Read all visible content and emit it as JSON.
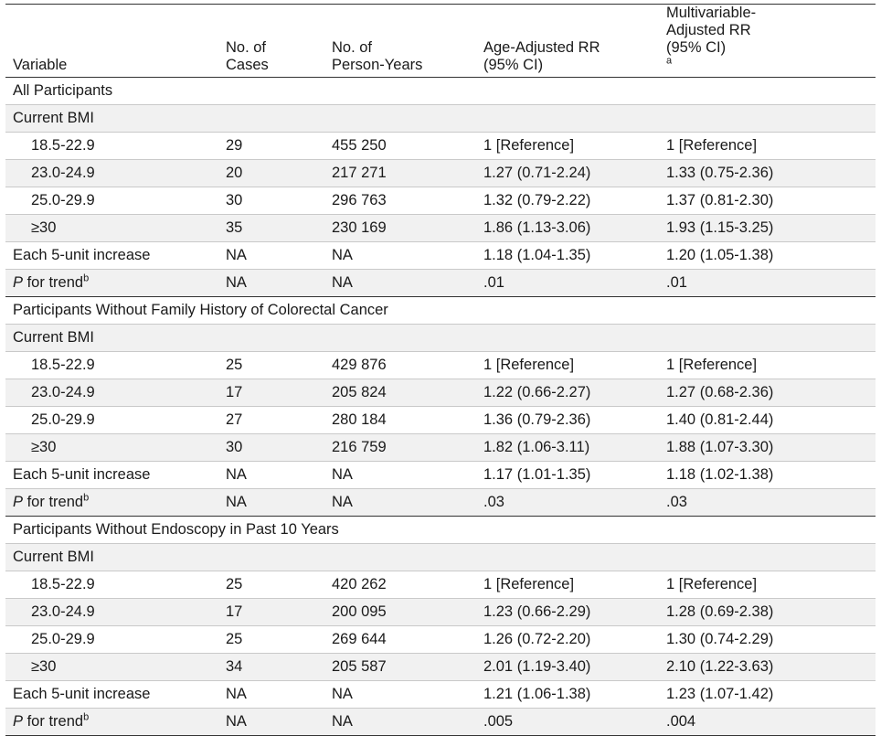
{
  "table": {
    "headers": {
      "variable": [
        "Variable"
      ],
      "cases": [
        "No. of",
        "Cases"
      ],
      "person_years": [
        "No. of",
        "Person-Years"
      ],
      "age_adjusted": [
        "Age-Adjusted RR",
        "(95% CI)"
      ],
      "multivariable": [
        "Multivariable-",
        "Adjusted RR",
        "(95% CI)"
      ],
      "multivariable_sup": "a"
    },
    "footnote_b": "b",
    "sections": [
      {
        "title": "All Participants",
        "subheading": "Current BMI",
        "rows": [
          {
            "label": "18.5-22.9",
            "cases": "29",
            "py": "455 250",
            "age": "1 [Reference]",
            "multi": "1 [Reference]"
          },
          {
            "label": "23.0-24.9",
            "cases": "20",
            "py": "217 271",
            "age": "1.27 (0.71-2.24)",
            "multi": "1.33 (0.75-2.36)"
          },
          {
            "label": "25.0-29.9",
            "cases": "30",
            "py": "296 763",
            "age": "1.32 (0.79-2.22)",
            "multi": "1.37 (0.81-2.30)"
          },
          {
            "label": "≥30",
            "cases": "35",
            "py": "230 169",
            "age": "1.86 (1.13-3.06)",
            "multi": "1.93 (1.15-3.25)"
          },
          {
            "label": "Each 5-unit increase",
            "cases": "NA",
            "py": "NA",
            "age": "1.18 (1.04-1.35)",
            "multi": "1.20 (1.05-1.38)"
          }
        ],
        "trend": {
          "p": "P",
          "rest": " for trend",
          "cases": "NA",
          "py": "NA",
          "age": ".01",
          "multi": ".01"
        }
      },
      {
        "title": "Participants Without Family History of Colorectal Cancer",
        "subheading": "Current BMI",
        "rows": [
          {
            "label": "18.5-22.9",
            "cases": "25",
            "py": "429 876",
            "age": "1 [Reference]",
            "multi": "1 [Reference]"
          },
          {
            "label": "23.0-24.9",
            "cases": "17",
            "py": "205 824",
            "age": "1.22 (0.66-2.27)",
            "multi": "1.27 (0.68-2.36)"
          },
          {
            "label": "25.0-29.9",
            "cases": "27",
            "py": "280 184",
            "age": "1.36 (0.79-2.36)",
            "multi": "1.40 (0.81-2.44)"
          },
          {
            "label": "≥30",
            "cases": "30",
            "py": "216 759",
            "age": "1.82 (1.06-3.11)",
            "multi": "1.88 (1.07-3.30)"
          },
          {
            "label": "Each 5-unit increase",
            "cases": "NA",
            "py": "NA",
            "age": "1.17 (1.01-1.35)",
            "multi": "1.18 (1.02-1.38)"
          }
        ],
        "trend": {
          "p": "P",
          "rest": " for trend",
          "cases": "NA",
          "py": "NA",
          "age": ".03",
          "multi": ".03"
        }
      },
      {
        "title": "Participants Without Endoscopy in Past 10 Years",
        "subheading": "Current BMI",
        "rows": [
          {
            "label": "18.5-22.9",
            "cases": "25",
            "py": "420 262",
            "age": "1 [Reference]",
            "multi": "1 [Reference]"
          },
          {
            "label": "23.0-24.9",
            "cases": "17",
            "py": "200 095",
            "age": "1.23 (0.66-2.29)",
            "multi": "1.28 (0.69-2.38)"
          },
          {
            "label": "25.0-29.9",
            "cases": "25",
            "py": "269 644",
            "age": "1.26 (0.72-2.20)",
            "multi": "1.30 (0.74-2.29)"
          },
          {
            "label": "≥30",
            "cases": "34",
            "py": "205 587",
            "age": "2.01 (1.19-3.40)",
            "multi": "2.10 (1.22-3.63)"
          },
          {
            "label": "Each 5-unit increase",
            "cases": "NA",
            "py": "NA",
            "age": "1.21 (1.06-1.38)",
            "multi": "1.23 (1.07-1.42)"
          }
        ],
        "trend": {
          "p": "P",
          "rest": " for trend",
          "cases": "NA",
          "py": "NA",
          "age": ".005",
          "multi": ".004"
        }
      }
    ]
  }
}
